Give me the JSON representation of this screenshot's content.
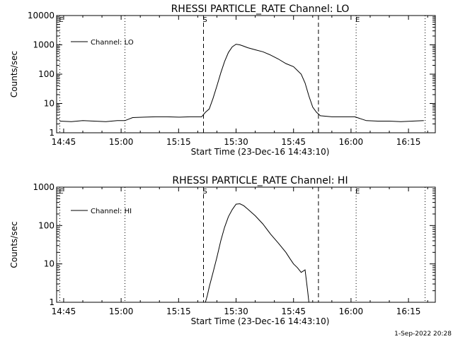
{
  "footer": {
    "timestamp": "1-Sep-2022 20:28"
  },
  "chart_data": [
    {
      "type": "line",
      "title": "RHESSI PARTICLE_RATE Channel: LO",
      "xlabel": "Start Time (23-Dec-16 14:43:10)",
      "ylabel": "Counts/sec",
      "y_scale": "log",
      "xlim": [
        "14:43:10",
        "16:22:00"
      ],
      "ylim": [
        1,
        10000
      ],
      "x_ticks": [
        "14:45",
        "15:00",
        "15:15",
        "15:30",
        "15:45",
        "16:00",
        "16:15"
      ],
      "y_ticks": [
        "1",
        "10",
        "100",
        "1000",
        "10000"
      ],
      "legend": {
        "position": "top-left",
        "entries": [
          "Channel: LO"
        ]
      },
      "markers": [
        {
          "label": "E",
          "time": "14:44:00",
          "style": "dotted"
        },
        {
          "label": "",
          "time": "15:01:00",
          "style": "dotted"
        },
        {
          "label": "S",
          "time": "15:21:30",
          "style": "dashed"
        },
        {
          "label": "",
          "time": "15:51:30",
          "style": "dashed"
        },
        {
          "label": "E",
          "time": "16:01:20",
          "style": "dotted"
        },
        {
          "label": "",
          "time": "16:19:20",
          "style": "dotted"
        }
      ],
      "series": [
        {
          "name": "Channel: LO",
          "x": [
            "14:44:00",
            "14:47:00",
            "14:50:00",
            "14:53:00",
            "14:56:00",
            "14:59:00",
            "15:01:00",
            "15:03:00",
            "15:06:00",
            "15:09:00",
            "15:12:00",
            "15:15:00",
            "15:18:00",
            "15:21:00",
            "15:22:00",
            "15:23:00",
            "15:24:00",
            "15:25:00",
            "15:26:00",
            "15:27:00",
            "15:28:00",
            "15:29:00",
            "15:30:00",
            "15:31:00",
            "15:32:00",
            "15:33:00",
            "15:35:00",
            "15:37:00",
            "15:39:00",
            "15:41:00",
            "15:43:00",
            "15:45:00",
            "15:47:00",
            "15:48:00",
            "15:49:00",
            "15:50:00",
            "15:51:00",
            "15:52:00",
            "15:55:00",
            "15:58:00",
            "16:01:00",
            "16:04:00",
            "16:07:00",
            "16:10:00",
            "16:13:00",
            "16:16:00",
            "16:19:00"
          ],
          "y": [
            2.5,
            2.4,
            2.6,
            2.5,
            2.4,
            2.6,
            2.6,
            3.3,
            3.4,
            3.5,
            3.5,
            3.4,
            3.5,
            3.5,
            5,
            6.5,
            15,
            40,
            110,
            270,
            550,
            850,
            1050,
            1000,
            900,
            800,
            680,
            580,
            450,
            330,
            230,
            180,
            100,
            50,
            18,
            7.5,
            5,
            3.8,
            3.5,
            3.5,
            3.5,
            2.6,
            2.5,
            2.5,
            2.4,
            2.5,
            2.6
          ]
        }
      ]
    },
    {
      "type": "line",
      "title": "RHESSI PARTICLE_RATE Channel: HI",
      "xlabel": "Start Time (23-Dec-16 14:43:10)",
      "ylabel": "Counts/sec",
      "y_scale": "log",
      "xlim": [
        "14:43:10",
        "16:22:00"
      ],
      "ylim": [
        1,
        1000
      ],
      "x_ticks": [
        "14:45",
        "15:00",
        "15:15",
        "15:30",
        "15:45",
        "16:00",
        "16:15"
      ],
      "y_ticks": [
        "1",
        "10",
        "100",
        "1000"
      ],
      "legend": {
        "position": "top-left",
        "entries": [
          "Channel: HI"
        ]
      },
      "markers": [
        {
          "label": "E",
          "time": "14:44:00",
          "style": "dotted"
        },
        {
          "label": "",
          "time": "15:01:00",
          "style": "dotted"
        },
        {
          "label": "S",
          "time": "15:21:30",
          "style": "dashed"
        },
        {
          "label": "",
          "time": "15:51:30",
          "style": "dashed"
        },
        {
          "label": "E",
          "time": "16:01:20",
          "style": "dotted"
        },
        {
          "label": "",
          "time": "16:19:20",
          "style": "dotted"
        }
      ],
      "series": [
        {
          "name": "Channel: HI",
          "x": [
            "15:22:00",
            "15:22:30",
            "15:23:00",
            "15:24:00",
            "15:25:00",
            "15:26:00",
            "15:27:00",
            "15:28:00",
            "15:29:00",
            "15:30:00",
            "15:31:00",
            "15:32:00",
            "15:33:00",
            "15:35:00",
            "15:37:00",
            "15:39:00",
            "15:41:00",
            "15:43:00",
            "15:44:00",
            "15:45:00",
            "15:46:00",
            "15:47:00",
            "15:48:00",
            "15:48:40",
            "15:49:00"
          ],
          "y": [
            1,
            1.5,
            2.5,
            6,
            15,
            40,
            90,
            170,
            260,
            360,
            370,
            330,
            270,
            180,
            110,
            60,
            35,
            20,
            14,
            10,
            8,
            6,
            7,
            2,
            1
          ]
        }
      ]
    }
  ]
}
